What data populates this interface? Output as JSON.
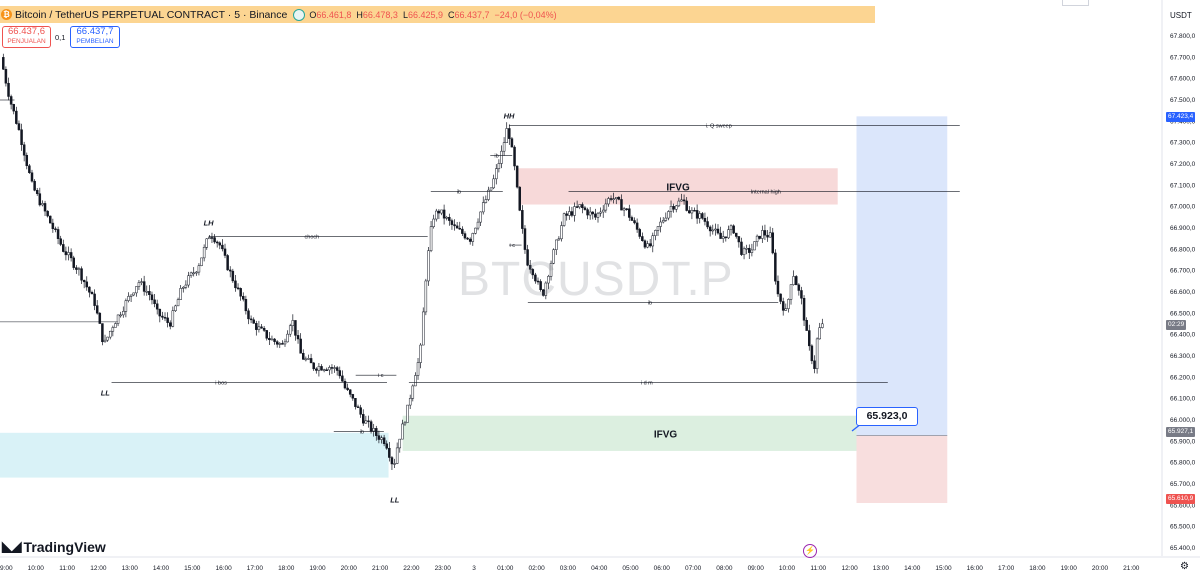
{
  "header": {
    "title": "Bitcoin / TetherUS PERPETUAL CONTRACT · 5 · Binance",
    "ohlc": [
      {
        "k": "O",
        "v": "66.461,8"
      },
      {
        "k": "H",
        "v": "66.478,3"
      },
      {
        "k": "L",
        "v": "66.425,9"
      },
      {
        "k": "C",
        "v": "66.437,7"
      }
    ],
    "change": "−24,0 (−0,04%)"
  },
  "trade": {
    "sell_price": "66.437,6",
    "sell_label": "PENJUALAN",
    "spread": "0,1",
    "buy_price": "66.437,7",
    "buy_label": "PEMBELIAN"
  },
  "currency": "USDT",
  "watermark": "BTCUSDT.P",
  "brand": "TradingView",
  "annotation": "65.923,0",
  "price_tags": {
    "target": "67.423,4",
    "countdown": "02:29",
    "entry": "65.927,1",
    "stop": "65.610,9"
  },
  "colors": {
    "up": "#131722",
    "down": "#131722",
    "ifvg_red": "#f7d9d9",
    "ifvg_green": "#dcefe0",
    "cyan_zone": "#d9f2f7",
    "target_zone": "#dbe6fb",
    "stop_zone": "#f8dede",
    "accent": "#2962ff"
  },
  "chart_data": {
    "type": "candlestick",
    "title": "BTCUSDT.P",
    "ylim": [
      65400,
      67900
    ],
    "y_ticks": [
      "67.800,0",
      "67.700,0",
      "67.600,0",
      "67.500,0",
      "67.400,0",
      "67.300,0",
      "67.200,0",
      "67.100,0",
      "67.000,0",
      "66.900,0",
      "66.800,0",
      "66.700,0",
      "66.600,0",
      "66.500,0",
      "66.400,0",
      "66.300,0",
      "66.200,0",
      "66.100,0",
      "66.000,0",
      "65.900,0",
      "65.800,0",
      "65.700,0",
      "65.600,0",
      "65.500,0",
      "65.400,0"
    ],
    "x_ticks": [
      "00",
      "09:00",
      "10:00",
      "11:00",
      "12:00",
      "13:00",
      "14:00",
      "15:00",
      "16:00",
      "17:00",
      "18:00",
      "19:00",
      "20:00",
      "21:00",
      "22:00",
      "23:00",
      "3",
      "01:00",
      "02:00",
      "03:00",
      "04:00",
      "05:00",
      "06:00",
      "07:00",
      "08:00",
      "09:00",
      "10:00",
      "11:00",
      "12:00",
      "13:00",
      "14:00",
      "15:00",
      "16:00",
      "17:00",
      "18:00",
      "19:00",
      "20:00",
      "21:00"
    ],
    "path_points": [
      [
        0,
        67700
      ],
      [
        0.3,
        67500
      ],
      [
        0.6,
        67350
      ],
      [
        1,
        67100
      ],
      [
        1.5,
        66950
      ],
      [
        2,
        66800
      ],
      [
        2.5,
        66700
      ],
      [
        3,
        66550
      ],
      [
        3.3,
        66350
      ],
      [
        3.6,
        66450
      ],
      [
        4,
        66550
      ],
      [
        4.4,
        66650
      ],
      [
        4.8,
        66580
      ],
      [
        5,
        66500
      ],
      [
        5.4,
        66450
      ],
      [
        5.8,
        66620
      ],
      [
        6.3,
        66720
      ],
      [
        6.7,
        66880
      ],
      [
        7,
        66820
      ],
      [
        7.3,
        66700
      ],
      [
        7.6,
        66600
      ],
      [
        8,
        66460
      ],
      [
        8.3,
        66420
      ],
      [
        8.6,
        66380
      ],
      [
        9,
        66350
      ],
      [
        9.3,
        66480
      ],
      [
        9.6,
        66300
      ],
      [
        10,
        66250
      ],
      [
        10.5,
        66250
      ],
      [
        10.8,
        66230
      ],
      [
        11,
        66150
      ],
      [
        11.3,
        66080
      ],
      [
        11.6,
        66000
      ],
      [
        12,
        65930
      ],
      [
        12.3,
        65900
      ],
      [
        12.55,
        65780
      ],
      [
        12.7,
        65900
      ],
      [
        13,
        66050
      ],
      [
        13.2,
        66200
      ],
      [
        13.4,
        66300
      ],
      [
        13.6,
        66700
      ],
      [
        13.8,
        66950
      ],
      [
        14,
        66980
      ],
      [
        14.5,
        66900
      ],
      [
        15,
        66850
      ],
      [
        15.4,
        67000
      ],
      [
        15.7,
        67100
      ],
      [
        16,
        67250
      ],
      [
        16.2,
        67380
      ],
      [
        16.4,
        67200
      ],
      [
        16.6,
        66950
      ],
      [
        16.8,
        66750
      ],
      [
        17,
        66700
      ],
      [
        17.3,
        66580
      ],
      [
        17.6,
        66750
      ],
      [
        18,
        66950
      ],
      [
        18.5,
        67000
      ],
      [
        19,
        66950
      ],
      [
        19.5,
        67050
      ],
      [
        20,
        66980
      ],
      [
        20.3,
        66900
      ],
      [
        20.7,
        66800
      ],
      [
        21,
        66900
      ],
      [
        21.4,
        67000
      ],
      [
        21.8,
        67030
      ],
      [
        22,
        66980
      ],
      [
        22.4,
        66950
      ],
      [
        22.7,
        66900
      ],
      [
        23,
        66850
      ],
      [
        23.4,
        66900
      ],
      [
        23.7,
        66780
      ],
      [
        24,
        66800
      ],
      [
        24.3,
        66880
      ],
      [
        24.6,
        66860
      ],
      [
        24.8,
        66600
      ],
      [
        25.1,
        66500
      ],
      [
        25.3,
        66700
      ],
      [
        25.6,
        66550
      ],
      [
        25.8,
        66350
      ],
      [
        26,
        66250
      ],
      [
        26.1,
        66400
      ],
      [
        26.2,
        66440
      ]
    ],
    "levels": [
      {
        "label": "choch",
        "y": 66860
      },
      {
        "label": "i bos",
        "y": 66175
      },
      {
        "label": "ib",
        "y": 65945
      },
      {
        "label": "i c",
        "y": 66210
      },
      {
        "label": "ib",
        "y": 67070
      },
      {
        "label": "ib",
        "y": 67240
      },
      {
        "label": "i c",
        "y": 66820
      },
      {
        "label": "i d m",
        "y": 66175
      },
      {
        "label": "ib",
        "y": 66550
      },
      {
        "label": "i. Q sweep",
        "y": 67380
      },
      {
        "label": "Internal high",
        "y": 67070
      }
    ],
    "pivots": [
      {
        "label": "HH",
        "x": 16.2,
        "y": 67380
      },
      {
        "label": "LH",
        "x": 6.6,
        "y": 66880
      },
      {
        "label": "LL",
        "x": 3.3,
        "y": 66180
      },
      {
        "label": "LL",
        "x": 12.55,
        "y": 65680
      }
    ],
    "zones": [
      {
        "label": "IFVG",
        "x1": 16.5,
        "x2": 26.7,
        "y1": 67010,
        "y2": 67180,
        "kind": "red"
      },
      {
        "label": "IFVG",
        "x1": 12.8,
        "x2": 29.6,
        "y1": 65855,
        "y2": 66020,
        "kind": "green"
      },
      {
        "label": "",
        "x1": -1,
        "x2": 12.35,
        "y1": 65730,
        "y2": 65940,
        "kind": "cyan"
      }
    ],
    "position": {
      "entry": 65927.1,
      "target": 67423.4,
      "stop": 65610.9,
      "x1": 27.3,
      "x2": 30.2
    }
  }
}
